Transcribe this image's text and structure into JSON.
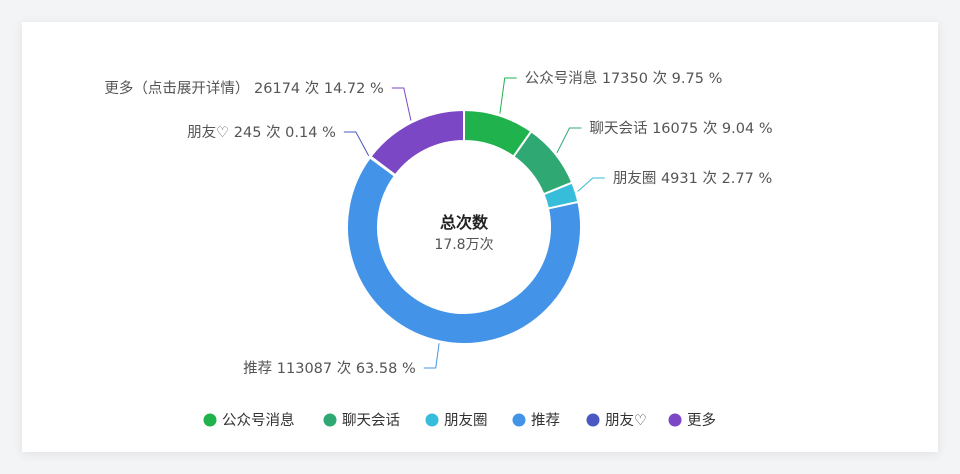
{
  "chart_data": {
    "type": "pie",
    "subtype": "donut",
    "center": {
      "title": "总次数",
      "value": "17.8万次"
    },
    "slices": [
      {
        "name": "公众号消息",
        "value": 17350,
        "percent": "9.75",
        "unit": "次",
        "color": "#20b24c",
        "label": "公众号消息 17350 次 9.75 %",
        "side": "right",
        "legend": "公众号消息"
      },
      {
        "name": "聊天会话",
        "value": 16075,
        "percent": "9.04",
        "unit": "次",
        "color": "#2fa874",
        "label": "聊天会话 16075 次 9.04 %",
        "side": "right",
        "legend": "聊天会话"
      },
      {
        "name": "朋友圈",
        "value": 4931,
        "percent": "2.77",
        "unit": "次",
        "color": "#36bdd9",
        "label": "朋友圈 4931 次 2.77 %",
        "side": "right",
        "legend": "朋友圈"
      },
      {
        "name": "推荐",
        "value": 113087,
        "percent": "63.58",
        "unit": "次",
        "color": "#4394e8",
        "label": "推荐 113087 次 63.58 %",
        "side": "left",
        "legend": "推荐"
      },
      {
        "name": "朋友♡",
        "value": 245,
        "percent": "0.14",
        "unit": "次",
        "color": "#4b58c2",
        "label": "朋友♡ 245 次 0.14 %",
        "side": "left",
        "legend": "朋友♡"
      },
      {
        "name": "更多（点击展开详情）",
        "value": 26174,
        "percent": "14.72",
        "unit": "次",
        "color": "#7b47c4",
        "label": "更多（点击展开详情） 26174 次 14.72 %",
        "side": "left",
        "legend": "更多"
      }
    ],
    "legend_position": "bottom"
  }
}
